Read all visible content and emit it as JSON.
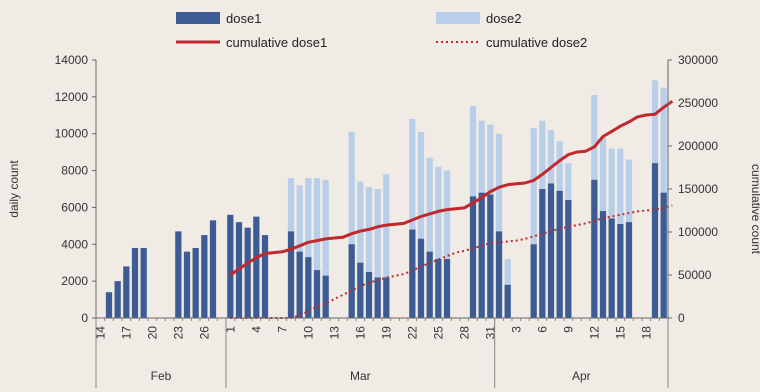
{
  "chart_data": {
    "type": "bar",
    "ylabel": "daily count",
    "y2label": "cumulative count",
    "ylim": [
      0,
      14000
    ],
    "y_ticks": [
      0,
      2000,
      4000,
      6000,
      8000,
      10000,
      12000,
      14000
    ],
    "y2lim": [
      0,
      300000
    ],
    "y2_ticks": [
      0,
      50000,
      100000,
      150000,
      200000,
      250000,
      300000
    ],
    "grid": false,
    "legend_position": "top",
    "x_start": "2021-02-14",
    "x_tick_labels": [
      "14",
      "17",
      "20",
      "23",
      "26",
      "1",
      "4",
      "7",
      "10",
      "13",
      "16",
      "19",
      "22",
      "25",
      "28",
      "31",
      "3",
      "6",
      "9",
      "12",
      "15",
      "18"
    ],
    "months": [
      "Feb",
      "Mar",
      "Apr"
    ],
    "series": [
      {
        "name": "dose1",
        "kind": "bar",
        "axis": "left",
        "color": "#3d5c94",
        "values": [
          0,
          1400,
          2000,
          2800,
          3800,
          3800,
          0,
          0,
          0,
          4700,
          3600,
          3800,
          4500,
          5300,
          0,
          5600,
          5200,
          4900,
          5500,
          4500,
          0,
          0,
          4700,
          3600,
          3300,
          2600,
          2300,
          0,
          0,
          4000,
          3000,
          2500,
          2200,
          2200,
          0,
          0,
          4800,
          4300,
          3600,
          3200,
          3200,
          0,
          0,
          6600,
          6800,
          6700,
          4700,
          1800,
          0,
          0,
          4000,
          7000,
          7300,
          6900,
          6400,
          0,
          0,
          7500,
          5800,
          5400,
          5100,
          5200,
          0,
          0,
          8400,
          6800
        ]
      },
      {
        "name": "dose2",
        "kind": "bar",
        "axis": "left",
        "color": "#b9cfe9",
        "values": [
          0,
          0,
          0,
          0,
          0,
          0,
          0,
          0,
          0,
          0,
          0,
          0,
          0,
          0,
          0,
          0,
          0,
          0,
          0,
          0,
          0,
          0,
          7600,
          7200,
          7600,
          7600,
          7500,
          0,
          0,
          10100,
          7400,
          7100,
          7000,
          7800,
          0,
          0,
          10800,
          10100,
          8700,
          8200,
          8000,
          0,
          0,
          11500,
          10700,
          10500,
          10000,
          3200,
          0,
          0,
          10300,
          10700,
          10200,
          9600,
          8400,
          0,
          0,
          12100,
          9800,
          9200,
          9200,
          8600,
          0,
          0,
          12900,
          12500
        ]
      },
      {
        "name": "cumulative dose1",
        "kind": "line",
        "axis": "right",
        "color": "#c0282d",
        "values": [
          null,
          null,
          null,
          null,
          null,
          null,
          null,
          null,
          null,
          null,
          null,
          null,
          null,
          null,
          null,
          50000,
          57000,
          64000,
          70000,
          75000,
          76000,
          77000,
          80000,
          84000,
          88000,
          90000,
          92000,
          93000,
          94000,
          98000,
          101000,
          103000,
          106000,
          108000,
          109000,
          110000,
          114000,
          118000,
          121000,
          124000,
          126000,
          127000,
          128000,
          134000,
          140000,
          147000,
          152000,
          155000,
          156000,
          157000,
          160000,
          167000,
          175000,
          183000,
          190000,
          193000,
          194000,
          199000,
          211000,
          217000,
          223000,
          228000,
          234000,
          236000,
          237000,
          245000,
          252000
        ]
      },
      {
        "name": "cumulative dose2",
        "kind": "line",
        "axis": "right",
        "color": "#c0282d",
        "values": [
          null,
          null,
          null,
          null,
          null,
          null,
          null,
          null,
          null,
          null,
          null,
          null,
          null,
          null,
          null,
          0,
          0,
          0,
          0,
          0,
          0,
          0,
          0,
          3000,
          8000,
          13000,
          17000,
          22000,
          27000,
          32000,
          37000,
          41000,
          44000,
          47000,
          49000,
          51000,
          55000,
          60000,
          64000,
          68000,
          72000,
          76000,
          78000,
          81000,
          84000,
          87000,
          88000,
          89000,
          90000,
          92000,
          95000,
          98000,
          101000,
          104000,
          106000,
          108000,
          110000,
          113000,
          116000,
          118000,
          120000,
          122000,
          124000,
          125000,
          126000,
          128000,
          131000
        ]
      }
    ]
  }
}
